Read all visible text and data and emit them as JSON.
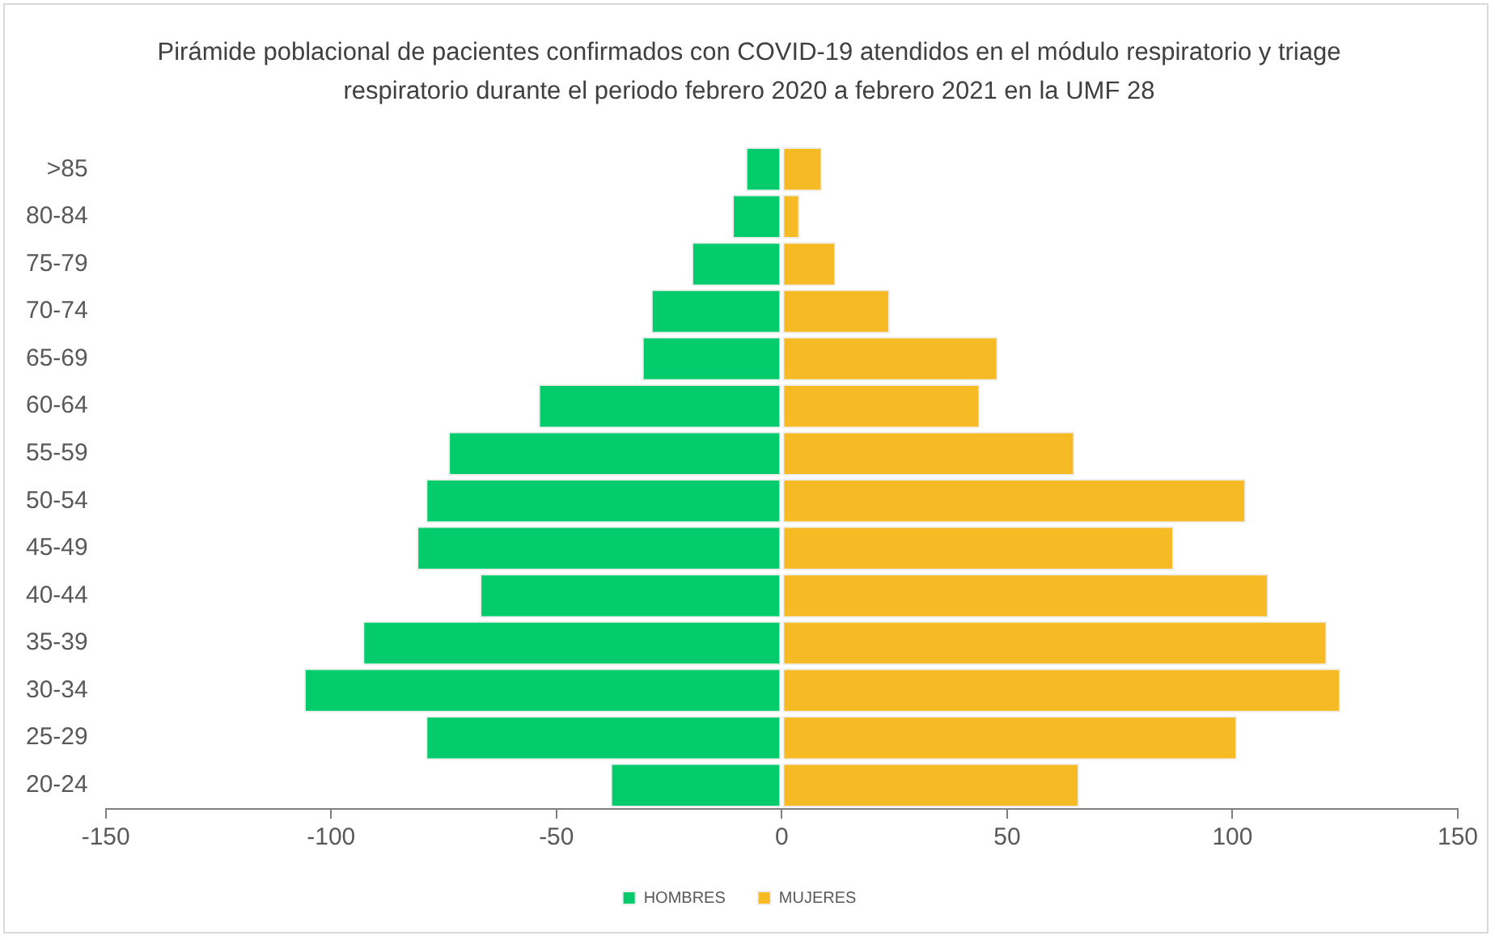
{
  "chart_data": {
    "type": "bar",
    "orientation": "horizontal",
    "stacked": true,
    "title": "Pirámide poblacional de pacientes confirmados con COVID-19 atendidos en el módulo respiratorio y triage respiratorio durante el periodo febrero 2020 a febrero 2021 en la UMF 28",
    "categories": [
      ">85",
      "80-84",
      "75-79",
      "70-74",
      "65-69",
      "60-64",
      "55-59",
      "50-54",
      "45-49",
      "40-44",
      "35-39",
      "30-34",
      "25-29",
      "20-24"
    ],
    "series": [
      {
        "name": "HOMBRES",
        "color": "#04cc6c",
        "values": [
          -8,
          -11,
          -20,
          -29,
          -31,
          -54,
          -74,
          -79,
          -81,
          -67,
          -93,
          -106,
          -79,
          -38
        ]
      },
      {
        "name": "MUJERES",
        "color": "#f6ba24",
        "values": [
          9,
          4,
          12,
          24,
          48,
          44,
          65,
          103,
          87,
          108,
          121,
          124,
          101,
          66
        ]
      }
    ],
    "xlim": [
      -150,
      150
    ],
    "xticks": [
      -150,
      -100,
      -50,
      0,
      50,
      100,
      150
    ],
    "grid": false,
    "legend": "bottom"
  }
}
